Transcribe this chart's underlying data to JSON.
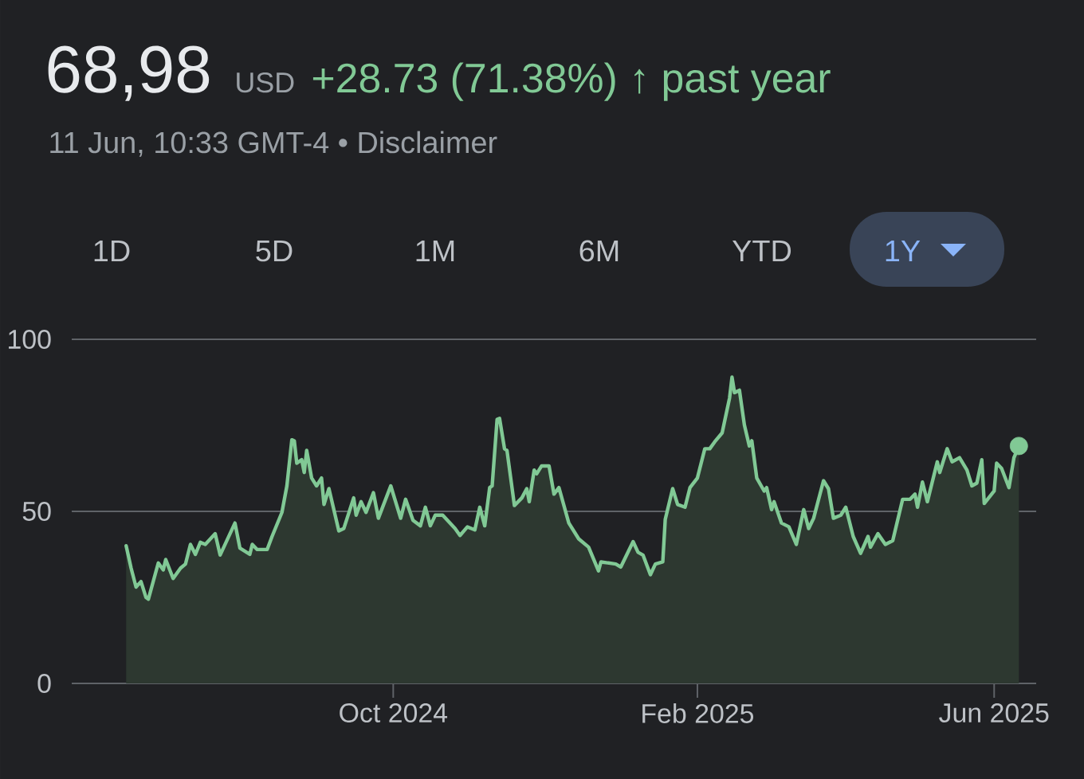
{
  "chart_data": {
    "type": "area",
    "title": "68,98",
    "subtitle": "11 Jun, 10:33 GMT-4 • Disclaimer",
    "annotations": [
      "USD",
      "+28.73 (71.38%) ↑ past year",
      "1D",
      "5D",
      "1M",
      "6M",
      "YTD",
      "1Y"
    ],
    "xlim": [
      "2024-05-24",
      "2025-06-18"
    ],
    "xticks": [
      {
        "value": "2024-10-01",
        "label": "Oct 2024"
      },
      {
        "value": "2025-02-01",
        "label": "Feb 2025"
      },
      {
        "value": "2025-06-01",
        "label": "Jun 2025"
      }
    ],
    "ylim": [
      0,
      100
    ],
    "yticks": [
      0,
      50,
      100
    ],
    "grid": "y",
    "series": [
      {
        "color": "#81c995",
        "x": [
          "2024-06-15",
          "2024-06-17",
          "2024-06-19",
          "2024-06-21",
          "2024-06-23",
          "2024-06-24",
          "2024-06-28",
          "2024-06-30",
          "2024-07-01",
          "2024-07-04",
          "2024-07-07",
          "2024-07-09",
          "2024-07-11",
          "2024-07-13",
          "2024-07-15",
          "2024-07-17",
          "2024-07-21",
          "2024-07-23",
          "2024-07-29",
          "2024-07-31",
          "2024-08-04",
          "2024-08-05",
          "2024-08-07",
          "2024-08-11",
          "2024-08-13",
          "2024-08-17",
          "2024-08-19",
          "2024-08-21",
          "2024-08-22",
          "2024-08-23",
          "2024-08-25",
          "2024-08-26",
          "2024-08-27",
          "2024-08-29",
          "2024-08-31",
          "2024-09-02",
          "2024-09-03",
          "2024-09-05",
          "2024-09-09",
          "2024-09-11",
          "2024-09-15",
          "2024-09-16",
          "2024-09-18",
          "2024-09-20",
          "2024-09-23",
          "2024-09-25",
          "2024-09-30",
          "2024-10-04",
          "2024-10-06",
          "2024-10-09",
          "2024-10-12",
          "2024-10-14",
          "2024-10-16",
          "2024-10-18",
          "2024-10-21",
          "2024-10-26",
          "2024-10-28",
          "2024-10-31",
          "2024-11-03",
          "2024-11-05",
          "2024-11-07",
          "2024-11-09",
          "2024-11-10",
          "2024-11-12",
          "2024-11-13",
          "2024-11-15",
          "2024-11-16",
          "2024-11-19",
          "2024-11-22",
          "2024-11-24",
          "2024-11-25",
          "2024-11-27",
          "2024-11-28",
          "2024-11-30",
          "2024-12-03",
          "2024-12-05",
          "2024-12-07",
          "2024-12-11",
          "2024-12-15",
          "2024-12-19",
          "2024-12-23",
          "2024-12-24",
          "2024-12-30",
          "2025-01-01",
          "2025-01-06",
          "2025-01-08",
          "2025-01-10",
          "2025-01-13",
          "2025-01-15",
          "2025-01-18",
          "2025-01-19",
          "2025-01-22",
          "2025-01-24",
          "2025-01-27",
          "2025-01-29",
          "2025-02-01",
          "2025-02-04",
          "2025-02-06",
          "2025-02-08",
          "2025-02-11",
          "2025-02-14",
          "2025-02-15",
          "2025-02-16",
          "2025-02-18",
          "2025-02-20",
          "2025-02-22",
          "2025-02-23",
          "2025-02-25",
          "2025-02-28",
          "2025-03-01",
          "2025-03-03",
          "2025-03-04",
          "2025-03-07",
          "2025-03-10",
          "2025-03-13",
          "2025-03-16",
          "2025-03-18",
          "2025-03-20",
          "2025-03-24",
          "2025-03-26",
          "2025-03-28",
          "2025-03-31",
          "2025-04-02",
          "2025-04-05",
          "2025-04-08",
          "2025-04-11",
          "2025-04-12",
          "2025-04-15",
          "2025-04-18",
          "2025-04-21",
          "2025-04-25",
          "2025-04-28",
          "2025-04-30",
          "2025-05-01",
          "2025-05-03",
          "2025-05-05",
          "2025-05-09",
          "2025-05-10",
          "2025-05-13",
          "2025-05-15",
          "2025-05-18",
          "2025-05-21",
          "2025-05-23",
          "2025-05-25",
          "2025-05-27",
          "2025-05-28",
          "2025-06-01",
          "2025-06-02",
          "2025-06-04",
          "2025-06-07",
          "2025-06-09",
          "2025-06-11"
        ],
        "values": [
          40,
          33.5,
          28,
          29.6,
          25,
          24.5,
          35,
          33,
          36,
          30.5,
          33.5,
          34.7,
          40.4,
          37.5,
          41,
          40.4,
          43.5,
          37.3,
          46.6,
          39.3,
          37.5,
          40.4,
          38.9,
          38.9,
          42.7,
          49.7,
          57.4,
          70.8,
          70.5,
          64,
          65,
          61.3,
          67.7,
          59.7,
          57.4,
          59.7,
          52,
          56.6,
          44.3,
          45,
          53.9,
          48.9,
          52.8,
          49.7,
          55.4,
          48,
          57.4,
          48,
          53.5,
          47.4,
          45.8,
          51.2,
          45.8,
          48.9,
          48.9,
          45,
          43,
          45.5,
          44.6,
          51.2,
          45.8,
          56.9,
          57.4,
          76.7,
          77,
          68.2,
          67.7,
          51.7,
          53.9,
          56.6,
          52.8,
          62,
          60.9,
          63.2,
          63.2,
          55,
          56.9,
          46.6,
          42,
          39.6,
          32.7,
          35.3,
          34.7,
          33.8,
          41.2,
          38.1,
          37.3,
          31.6,
          34.7,
          35.3,
          47.7,
          56.6,
          52,
          51.2,
          56.9,
          59.7,
          68.2,
          68.2,
          70.2,
          72.8,
          82.9,
          89,
          84.5,
          85.2,
          75.1,
          69,
          70.5,
          59.7,
          55.9,
          56.9,
          50.5,
          52.8,
          46.6,
          45.5,
          40.4,
          50.5,
          45,
          48,
          58.9,
          56.6,
          48,
          48.9,
          51.2,
          42.7,
          37.8,
          42.7,
          39.6,
          43.5,
          40.4,
          41.5,
          53.5,
          53.5,
          55,
          51.2,
          58.5,
          52.8,
          64.4,
          61.3,
          68.2,
          64.4,
          65.6,
          62,
          57.4,
          58.2,
          65,
          52.3,
          55.9,
          64,
          62.5,
          56.9,
          65.6,
          69
        ]
      },
      {
        "type": "scatter",
        "marker": "circle",
        "color": "#81c995",
        "x": [
          "2025-06-11"
        ],
        "values": [
          69
        ]
      }
    ]
  }
}
